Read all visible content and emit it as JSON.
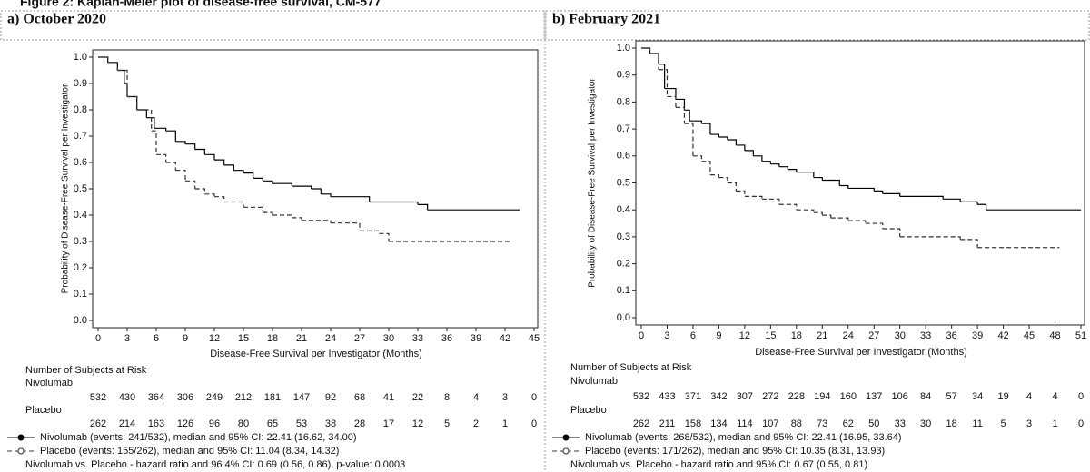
{
  "figure_title": "Figure 2: Kaplan-Meier plot of disease-free survival, CM-577",
  "chart_data": [
    {
      "type": "line",
      "title": "a) October 2020",
      "step": true,
      "x_label": "Disease-Free Survival per Investigator (Months)",
      "y_label": "Probability of Disease-Free Survival per Investigator",
      "xlim": [
        0,
        45
      ],
      "xticks": [
        0,
        3,
        6,
        9,
        12,
        15,
        18,
        21,
        24,
        27,
        30,
        33,
        36,
        39,
        42,
        45
      ],
      "ylim": [
        0,
        1
      ],
      "yticks": [
        {
          "value": 0,
          "label": "0.0"
        },
        0.1,
        0.2,
        0.3,
        0.4,
        0.5,
        0.6,
        0.7,
        0.8,
        0.9,
        {
          "value": 1,
          "label": "1.0"
        }
      ],
      "series": [
        {
          "name": "Nivolumab (events: 241/532), median and 95% CI: 22.41 (16.62, 34.00)",
          "color": "#000000",
          "dash": false,
          "x": [
            0,
            1,
            2,
            2.7,
            3,
            4,
            5,
            5.8,
            7,
            8,
            9,
            10,
            11,
            12,
            13,
            14,
            15,
            16,
            17,
            18,
            20,
            22,
            23,
            24,
            27,
            28,
            33,
            34,
            43.5
          ],
          "values": [
            1,
            0.98,
            0.95,
            0.9,
            0.85,
            0.8,
            0.77,
            0.73,
            0.72,
            0.68,
            0.67,
            0.65,
            0.63,
            0.61,
            0.59,
            0.57,
            0.56,
            0.54,
            0.53,
            0.52,
            0.51,
            0.5,
            0.48,
            0.47,
            0.47,
            0.45,
            0.44,
            0.42,
            0.42
          ]
        },
        {
          "name": "Placebo (events: 155/262), median and 95% CI: 11.04 (8.34, 14.32)",
          "color": "#333333",
          "dash": true,
          "x": [
            0,
            1,
            2,
            3,
            4,
            5.5,
            6,
            7,
            8,
            9,
            10,
            11,
            12,
            13,
            15,
            17,
            18,
            20,
            21,
            24,
            27,
            29,
            30,
            42.5
          ],
          "values": [
            1,
            0.98,
            0.95,
            0.85,
            0.8,
            0.72,
            0.63,
            0.6,
            0.57,
            0.53,
            0.5,
            0.48,
            0.47,
            0.45,
            0.43,
            0.41,
            0.4,
            0.39,
            0.38,
            0.37,
            0.34,
            0.33,
            0.3,
            0.3
          ]
        }
      ],
      "risk_table": {
        "title": "Number of Subjects at Risk",
        "rows": [
          {
            "name": "Nivolumab",
            "values": [
              532,
              430,
              364,
              306,
              249,
              212,
              181,
              147,
              92,
              68,
              41,
              22,
              8,
              4,
              3,
              0
            ]
          },
          {
            "name": "Placebo",
            "values": [
              262,
              214,
              163,
              126,
              96,
              80,
              65,
              53,
              38,
              28,
              17,
              12,
              5,
              2,
              1,
              0
            ]
          }
        ]
      },
      "footnote": "Nivolumab vs. Placebo - hazard ratio and 96.4% CI: 0.69 (0.56, 0.86), p-value: 0.0003"
    },
    {
      "type": "line",
      "title": "b) February 2021",
      "step": true,
      "x_label": "Disease-Free Survival per Investigator (Months)",
      "y_label": "Probability of Disease-Free Survival per Investigator",
      "xlim": [
        0,
        51
      ],
      "xticks": [
        0,
        3,
        6,
        9,
        12,
        15,
        18,
        21,
        24,
        27,
        30,
        33,
        36,
        39,
        42,
        45,
        48,
        51
      ],
      "ylim": [
        0,
        1
      ],
      "yticks": [
        {
          "value": 0,
          "label": "0.0"
        },
        0.1,
        0.2,
        0.3,
        0.4,
        0.5,
        0.6,
        0.7,
        0.8,
        0.9,
        {
          "value": 1,
          "label": "1.0"
        }
      ],
      "series": [
        {
          "name": "Nivolumab (events: 268/532), median and 95% CI: 22.41 (16.95, 33.64)",
          "color": "#000000",
          "dash": false,
          "x": [
            0,
            1,
            2,
            2.7,
            4,
            5,
            5.6,
            7,
            8,
            9,
            10,
            11,
            12,
            13,
            14,
            15,
            16,
            17,
            18,
            20,
            21,
            23,
            24,
            27,
            28,
            30,
            35,
            37,
            39,
            40,
            51
          ],
          "values": [
            1,
            0.98,
            0.94,
            0.85,
            0.81,
            0.77,
            0.73,
            0.72,
            0.68,
            0.67,
            0.66,
            0.64,
            0.62,
            0.6,
            0.58,
            0.57,
            0.56,
            0.55,
            0.54,
            0.52,
            0.51,
            0.49,
            0.48,
            0.47,
            0.46,
            0.45,
            0.44,
            0.43,
            0.42,
            0.4,
            0.4
          ]
        },
        {
          "name": "Placebo (events: 171/262), median and 95% CI: 10.35 (8.31, 13.93)",
          "color": "#333333",
          "dash": true,
          "x": [
            0,
            1,
            2,
            3,
            4,
            5,
            6,
            7,
            8,
            9,
            10,
            11,
            12,
            14,
            16,
            18,
            20,
            21,
            22,
            24,
            26,
            28,
            30,
            37,
            39,
            48.5
          ],
          "values": [
            1,
            0.98,
            0.92,
            0.82,
            0.78,
            0.72,
            0.6,
            0.58,
            0.53,
            0.52,
            0.5,
            0.47,
            0.45,
            0.44,
            0.42,
            0.4,
            0.39,
            0.38,
            0.37,
            0.36,
            0.35,
            0.33,
            0.3,
            0.29,
            0.26,
            0.26
          ]
        }
      ],
      "risk_table": {
        "title": "Number of Subjects at Risk",
        "rows": [
          {
            "name": "Nivolumab",
            "values": [
              532,
              433,
              371,
              342,
              307,
              272,
              228,
              194,
              160,
              137,
              106,
              84,
              57,
              34,
              19,
              4,
              4,
              0
            ]
          },
          {
            "name": "Placebo",
            "values": [
              262,
              211,
              158,
              134,
              114,
              107,
              88,
              73,
              62,
              50,
              33,
              30,
              18,
              11,
              5,
              3,
              1,
              0
            ]
          }
        ]
      },
      "footnote": "Nivolumab vs. Placebo - hazard ratio and 95% CI: 0.67 (0.55, 0.81)"
    }
  ]
}
